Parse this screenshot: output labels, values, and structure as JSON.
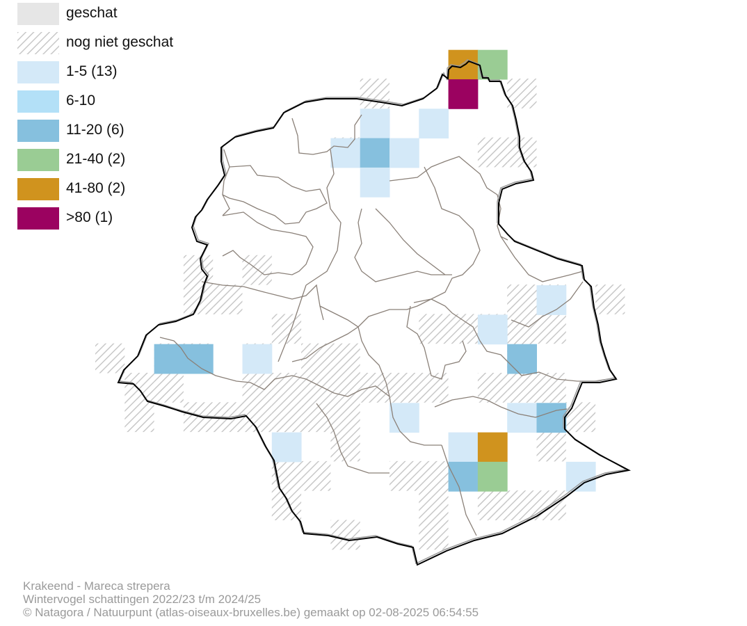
{
  "legend": {
    "items": [
      {
        "label": "geschat",
        "fill": "#e6e6e6",
        "pattern": false
      },
      {
        "label": "nog niet geschat",
        "fill": "#ffffff",
        "pattern": true
      },
      {
        "label": "1-5 (13)",
        "fill": "#d4e9f8",
        "pattern": false
      },
      {
        "label": "6-10",
        "fill": "#b3e0f7",
        "pattern": false
      },
      {
        "label": "11-20 (6)",
        "fill": "#86c0de",
        "pattern": false
      },
      {
        "label": "21-40 (2)",
        "fill": "#9acc94",
        "pattern": false
      },
      {
        "label": "41-80 (2)",
        "fill": "#d0931e",
        "pattern": false
      },
      {
        "label": ">80 (1)",
        "fill": "#9b0260",
        "pattern": false
      }
    ]
  },
  "caption": {
    "species": "Krakeend - Mareca strepera",
    "period": "Wintervogel schattingen 2022/23 t/m 2024/25",
    "credit": "© Natagora / Natuurpunt (atlas-oiseaux-bruxelles.be) gemaakt op 02-08-2025 06:54:55"
  },
  "colors": {
    "hatch": "#c8c8c8",
    "boundary": "#000000",
    "municipality_lines": "#8a8078"
  },
  "map": {
    "estimated_cells": [
      {
        "label": "1-5 (13)",
        "count": 13
      },
      {
        "label": "11-20 (6)",
        "count": 6
      },
      {
        "label": "21-40 (2)",
        "count": 2
      },
      {
        "label": "41-80 (2)",
        "count": 2
      },
      {
        "label": ">80 (1)",
        "count": 1
      }
    ]
  }
}
